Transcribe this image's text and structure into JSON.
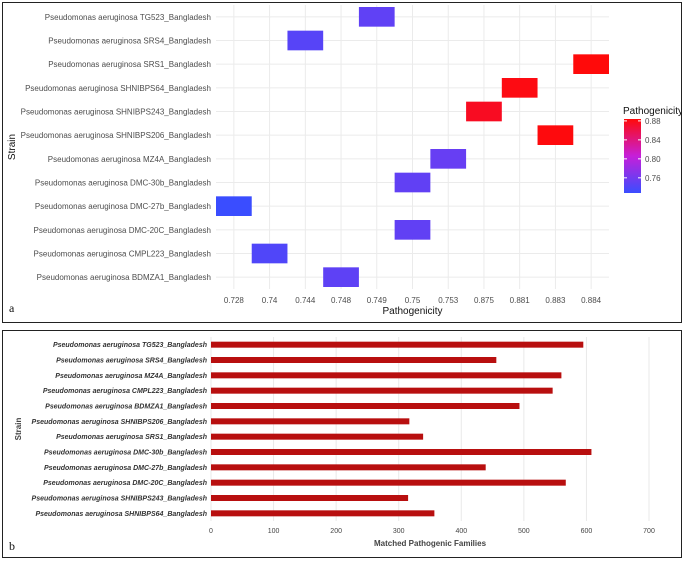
{
  "chart_data": [
    {
      "type": "heatmap",
      "panel_label": "a",
      "xlabel": "Pathogenicity",
      "ylabel": "Strain",
      "x_categories": [
        "0.728",
        "0.74",
        "0.744",
        "0.748",
        "0.749",
        "0.75",
        "0.753",
        "0.875",
        "0.881",
        "0.883",
        "0.884"
      ],
      "y_categories": [
        "Pseudomonas aeruginosa TG523_Bangladesh",
        "Pseudomonas aeruginosa SRS4_Bangladesh",
        "Pseudomonas aeruginosa SRS1_Bangladesh",
        "Pseudomonas aeruginosa SHNIBPS64_Bangladesh",
        "Pseudomonas aeruginosa SHNIBPS243_Bangladesh",
        "Pseudomonas aeruginosa SHNIBPS206_Bangladesh",
        "Pseudomonas aeruginosa MZ4A_Bangladesh",
        "Pseudomonas aeruginosa DMC-30b_Bangladesh",
        "Pseudomonas aeruginosa DMC-27b_Bangladesh",
        "Pseudomonas aeruginosa DMC-20C_Bangladesh",
        "Pseudomonas aeruginosa CMPL223_Bangladesh",
        "Pseudomonas aeruginosa BDMZA1_Bangladesh"
      ],
      "cells": [
        {
          "strain": "Pseudomonas aeruginosa TG523_Bangladesh",
          "x": 4.5,
          "value": 0.749
        },
        {
          "strain": "Pseudomonas aeruginosa SRS4_Bangladesh",
          "x": 2.5,
          "value": 0.744
        },
        {
          "strain": "Pseudomonas aeruginosa SRS1_Bangladesh",
          "x": 10.5,
          "value": 0.884
        },
        {
          "strain": "Pseudomonas aeruginosa SHNIBPS64_Bangladesh",
          "x": 8.5,
          "value": 0.881
        },
        {
          "strain": "Pseudomonas aeruginosa SHNIBPS243_Bangladesh",
          "x": 7.5,
          "value": 0.875
        },
        {
          "strain": "Pseudomonas aeruginosa SHNIBPS206_Bangladesh",
          "x": 9.5,
          "value": 0.883
        },
        {
          "strain": "Pseudomonas aeruginosa MZ4A_Bangladesh",
          "x": 6.5,
          "value": 0.753
        },
        {
          "strain": "Pseudomonas aeruginosa DMC-30b_Bangladesh",
          "x": 5.5,
          "value": 0.75
        },
        {
          "strain": "Pseudomonas aeruginosa DMC-27b_Bangladesh",
          "x": 0.5,
          "value": 0.728
        },
        {
          "strain": "Pseudomonas aeruginosa DMC-20C_Bangladesh",
          "x": 5.5,
          "value": 0.75
        },
        {
          "strain": "Pseudomonas aeruginosa CMPL223_Bangladesh",
          "x": 1.5,
          "value": 0.74
        },
        {
          "strain": "Pseudomonas aeruginosa BDMZA1_Bangladesh",
          "x": 3.5,
          "value": 0.748
        }
      ],
      "legend": {
        "title": "Pathogenicity",
        "ticks": [
          "0.88",
          "0.84",
          "0.80",
          "0.76"
        ],
        "tick_values": [
          0.88,
          0.84,
          0.8,
          0.76
        ],
        "range": [
          0.728,
          0.884
        ],
        "color_low": "#3a4dff",
        "color_mid": "#c61fd9",
        "color_high": "#ff0a0a",
        "placement": "right"
      },
      "grid": true
    },
    {
      "type": "bar",
      "orientation": "horizontal",
      "panel_label": "b",
      "xlabel": "Matched Pathogenic Families",
      "ylabel": "Strain",
      "categories": [
        "Pseudomonas aeruginosa TG523_Bangladesh",
        "Pseudomonas aeruginosa SRS4_Bangladesh",
        "Pseudomonas aeruginosa MZ4A_Bangladesh",
        "Pseudomonas aeruginosa CMPL223_Bangladesh",
        "Pseudomonas aeruginosa BDMZA1_Bangladesh",
        "Pseudomonas aeruginosa SHNIBPS206_Bangladesh",
        "Pseudomonas aeruginosa SRS1_Bangladesh",
        "Pseudomonas aeruginosa DMC-30b_Bangladesh",
        "Pseudomonas aeruginosa DMC-27b_Bangladesh",
        "Pseudomonas aeruginosa DMC-20C_Bangladesh",
        "Pseudomonas aeruginosa SHNIBPS243_Bangladesh",
        "Pseudomonas aeruginosa SHNIBPS64_Bangladesh"
      ],
      "values": [
        595,
        456,
        560,
        546,
        493,
        317,
        339,
        608,
        439,
        567,
        315,
        357
      ],
      "xlim": [
        0,
        700
      ],
      "xticks": [
        "0",
        "100",
        "200",
        "300",
        "400",
        "500",
        "600",
        "700"
      ],
      "tick_values": [
        0,
        100,
        200,
        300,
        400,
        500,
        600,
        700
      ],
      "bar_color": "#b80f0f",
      "grid": true
    }
  ]
}
